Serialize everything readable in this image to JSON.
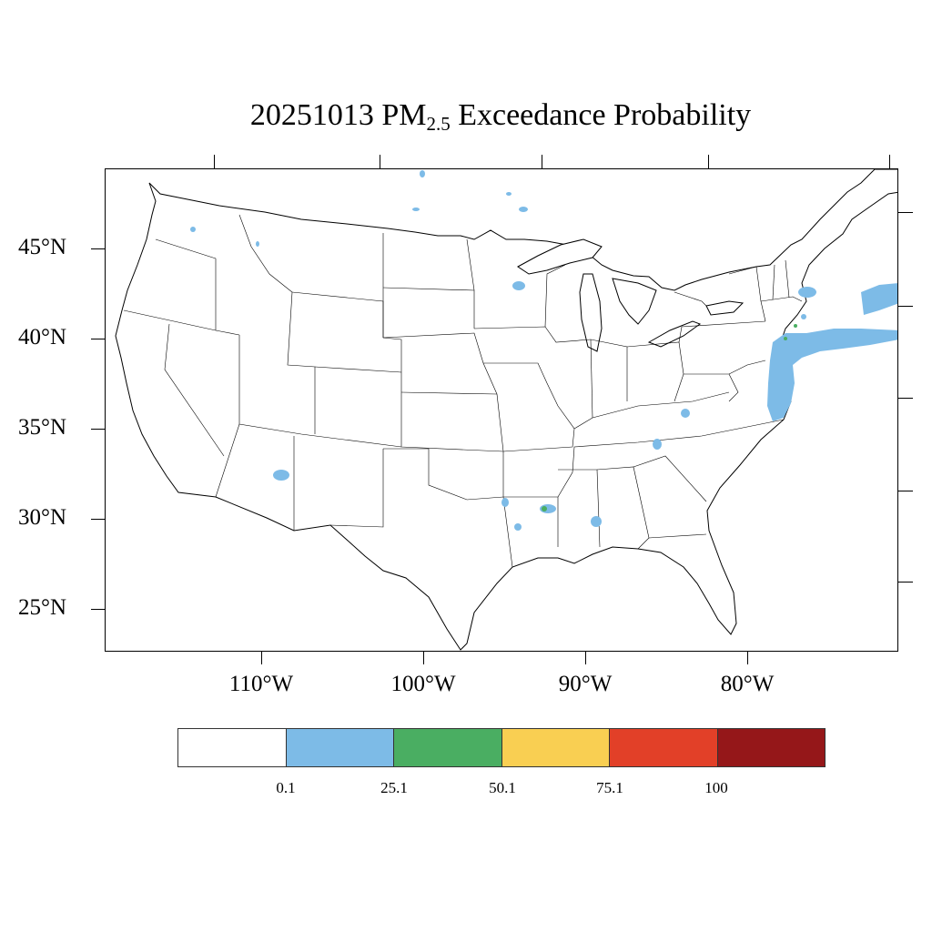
{
  "title": {
    "date": "20251013",
    "pm": "PM",
    "pm_sub": "2.5",
    "rest": "Exceedance Probability"
  },
  "lat_labels": [
    "45°N",
    "40°N",
    "35°N",
    "30°N",
    "25°N"
  ],
  "lon_labels": [
    "110°W",
    "100°W",
    "90°W",
    "80°W"
  ],
  "colorbar": {
    "colors": [
      "#ffffff",
      "#7dbbe7",
      "#4aae62",
      "#f9cf52",
      "#e24028",
      "#951719"
    ],
    "labels": [
      "0.1",
      "25.1",
      "50.1",
      "75.1",
      "100"
    ]
  },
  "colors": {
    "land_fill": "#ffffff",
    "boundary": "#000000",
    "prob_low": "#7dbbe7",
    "prob_mid": "#4aae62"
  }
}
